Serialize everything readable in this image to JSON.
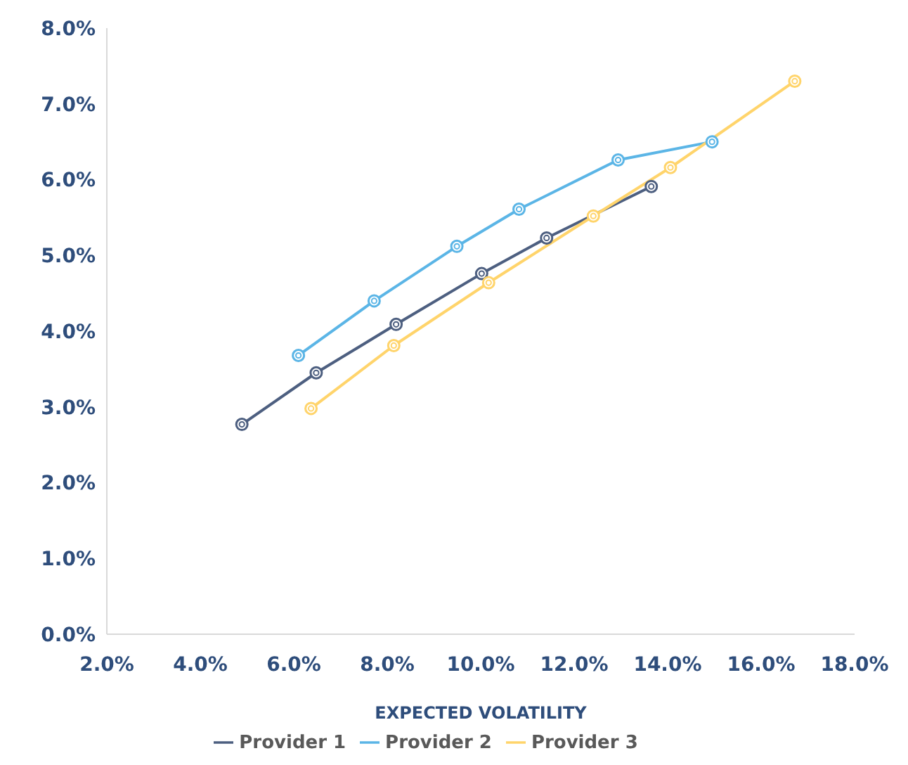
{
  "chart_data": {
    "type": "line",
    "xlabel": "EXPECTED VOLATILITY",
    "xlim": [
      2,
      18
    ],
    "xticks": [
      {
        "value": 2,
        "label": "2.0%"
      },
      {
        "value": 4,
        "label": "4.0%"
      },
      {
        "value": 6,
        "label": "6.0%"
      },
      {
        "value": 8,
        "label": "8.0%"
      },
      {
        "value": 10,
        "label": "10.0%"
      },
      {
        "value": 12,
        "label": "12.0%"
      },
      {
        "value": 14,
        "label": "14.0%"
      },
      {
        "value": 16,
        "label": "16.0%"
      },
      {
        "value": 18,
        "label": "18.0%"
      }
    ],
    "ylim": [
      0,
      8
    ],
    "yticks": [
      {
        "value": 0,
        "label": "0.0%"
      },
      {
        "value": 1,
        "label": "1.0%"
      },
      {
        "value": 2,
        "label": "2.0%"
      },
      {
        "value": 3,
        "label": "3.0%"
      },
      {
        "value": 4,
        "label": "4.0%"
      },
      {
        "value": 5,
        "label": "5.0%"
      },
      {
        "value": 6,
        "label": "6.0%"
      },
      {
        "value": 7,
        "label": "7.0%"
      },
      {
        "value": 8,
        "label": "8.0%"
      }
    ],
    "series": [
      {
        "name": "Provider 1",
        "color": "#4d5f80",
        "x": [
          4.89,
          6.48,
          8.19,
          10.02,
          11.41,
          13.65
        ],
        "values": [
          2.77,
          3.45,
          4.09,
          4.76,
          5.23,
          5.91
        ]
      },
      {
        "name": "Provider 2",
        "color": "#5bb5e6",
        "x": [
          6.1,
          7.72,
          9.49,
          10.82,
          12.94,
          14.95
        ],
        "values": [
          3.68,
          4.4,
          5.12,
          5.61,
          6.26,
          6.5
        ]
      },
      {
        "name": "Provider 3",
        "color": "#ffd46b",
        "x": [
          6.37,
          8.14,
          10.17,
          12.41,
          14.06,
          16.72
        ],
        "values": [
          2.98,
          3.81,
          4.64,
          5.52,
          6.16,
          7.3
        ]
      }
    ],
    "marker": "circle",
    "grid": false,
    "legend": "bottom"
  }
}
